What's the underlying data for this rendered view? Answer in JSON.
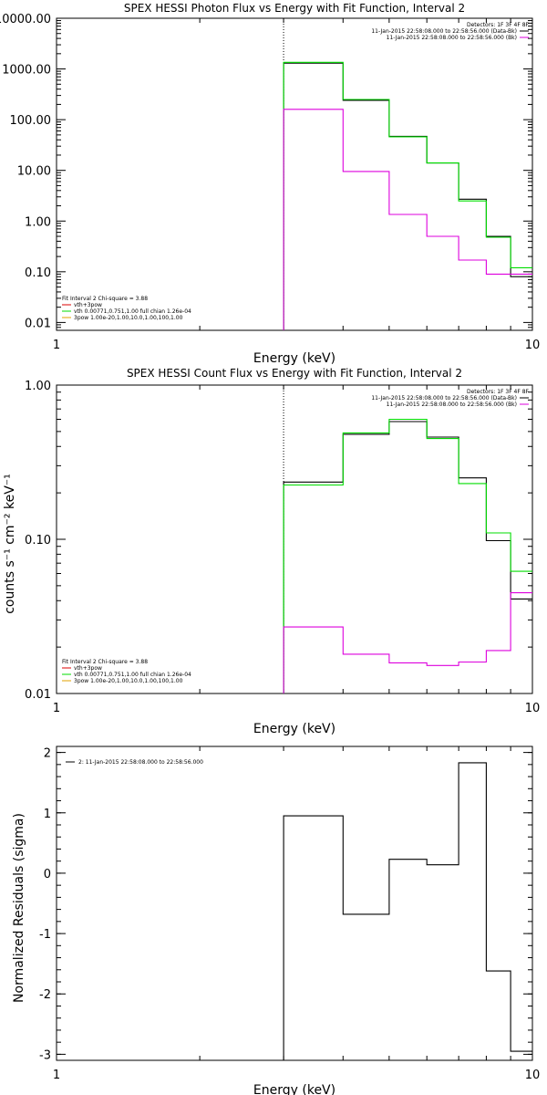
{
  "colors": {
    "black": "#000000",
    "green": "#00dd00",
    "magenta": "#dd00dd",
    "orange": "#e0a000",
    "red": "#dd0000"
  },
  "chart_data": [
    {
      "type": "line",
      "step": true,
      "title": "SPEX HESSI Photon Flux vs Energy with Fit Function, Interval 2",
      "xlabel": "Energy (keV)",
      "ylabel": "",
      "xscale": "log",
      "yscale": "log",
      "xlim": [
        1,
        10
      ],
      "ylim": [
        0.007,
        10000
      ],
      "x_ticks": [
        "1",
        "10"
      ],
      "y_ticks": [
        {
          "v": 0.01,
          "label": "0.01"
        },
        {
          "v": 0.1,
          "label": "0.10"
        },
        {
          "v": 1,
          "label": "1.00"
        },
        {
          "v": 10,
          "label": "10.00"
        },
        {
          "v": 100,
          "label": "100.00"
        },
        {
          "v": 1000,
          "label": "1000.00"
        },
        {
          "v": 10000,
          "label": "10000.00"
        }
      ],
      "vline_x": 3,
      "bin_edges": [
        3,
        4,
        5,
        6,
        7,
        8,
        9,
        10
      ],
      "series": [
        {
          "name": "11-Jan-2015 22:58:08.000 to 22:58:56.000 (Data-Bk)",
          "color": "#000000",
          "values": [
            1300,
            240,
            47,
            14,
            2.7,
            0.5,
            0.08
          ]
        },
        {
          "name": "vth 0.00771,0.751,1.00  full chian 1.26e-04",
          "color": "#00dd00",
          "values": [
            1350,
            250,
            46,
            14,
            2.5,
            0.48,
            0.12
          ]
        },
        {
          "name": "11-Jan-2015 22:58:08.000 to 22:58:56.000 (Bk)",
          "color": "#dd00dd",
          "values": [
            160,
            9.5,
            1.35,
            0.5,
            0.17,
            0.09,
            0.09
          ]
        }
      ],
      "legend_top": {
        "header": "Detectors: 1F 3F 4F 8F",
        "items": [
          {
            "text": "11-Jan-2015 22:58:08.000 to 22:58:56.000 (Data-Bk)",
            "color": "#000000"
          },
          {
            "text": "11-Jan-2015 22:58:08.000 to 22:58:56.000 (Bk)",
            "color": "#dd00dd"
          }
        ]
      },
      "legend_bottom": {
        "header": "Fit Interval  2   Chi-square = 3.88",
        "items": [
          {
            "text": "vth+3pow",
            "color": "#dd0000"
          },
          {
            "text": "vth 0.00771,0.751,1.00  full chian 1.26e-04",
            "color": "#00dd00"
          },
          {
            "text": "3pow 1.00e-20,1.00,10.0,1.00,100,1.00",
            "color": "#e0a000"
          }
        ]
      }
    },
    {
      "type": "line",
      "step": true,
      "title": "SPEX HESSI Count Flux vs Energy with Fit Function, Interval 2",
      "xlabel": "Energy (keV)",
      "ylabel": "counts s⁻¹ cm⁻² keV⁻¹",
      "xscale": "log",
      "yscale": "log",
      "xlim": [
        1,
        10
      ],
      "ylim": [
        0.01,
        1
      ],
      "x_ticks": [
        "1",
        "10"
      ],
      "y_ticks": [
        {
          "v": 0.01,
          "label": "0.01"
        },
        {
          "v": 0.1,
          "label": "0.10"
        },
        {
          "v": 1,
          "label": "1.00"
        }
      ],
      "vline_x": 3,
      "bin_edges": [
        3,
        4,
        5,
        6,
        7,
        8,
        9,
        10
      ],
      "series": [
        {
          "name": "11-Jan-2015 22:58:08.000 to 22:58:56.000 (Data-Bk)",
          "color": "#000000",
          "values": [
            0.235,
            0.48,
            0.58,
            0.46,
            0.25,
            0.098,
            0.041
          ]
        },
        {
          "name": "vth 0.00771,0.751,1.00  full chian 1.26e-04",
          "color": "#00dd00",
          "values": [
            0.225,
            0.49,
            0.6,
            0.45,
            0.23,
            0.11,
            0.062
          ]
        },
        {
          "name": "11-Jan-2015 22:58:08.000 to 22:58:56.000 (Bk)",
          "color": "#dd00dd",
          "values": [
            0.027,
            0.018,
            0.0158,
            0.0152,
            0.016,
            0.019,
            0.045
          ]
        }
      ],
      "legend_top": {
        "header": "Detectors: 1F 3F 4F 8F",
        "items": [
          {
            "text": "11-Jan-2015 22:58:08.000 to 22:58:56.000 (Data-Bk)",
            "color": "#000000"
          },
          {
            "text": "11-Jan-2015 22:58:08.000 to 22:58:56.000 (Bk)",
            "color": "#dd00dd"
          }
        ]
      },
      "legend_bottom": {
        "header": "Fit Interval  2   Chi-square = 3.88",
        "items": [
          {
            "text": "vth+3pow",
            "color": "#dd0000"
          },
          {
            "text": "vth 0.00771,0.751,1.00  full chian 1.26e-04",
            "color": "#00dd00"
          },
          {
            "text": "3pow 1.00e-20,1.00,10.0,1.00,100,1.00",
            "color": "#e0a000"
          }
        ]
      }
    },
    {
      "type": "line",
      "step": true,
      "title": "",
      "xlabel": "Energy (keV)",
      "ylabel": "Normalized Residuals (sigma)",
      "xscale": "log",
      "yscale": "linear",
      "xlim": [
        1,
        10
      ],
      "ylim": [
        -3.1,
        2.1
      ],
      "x_ticks": [
        "1",
        "10"
      ],
      "y_ticks": [
        {
          "v": -3,
          "label": "-3"
        },
        {
          "v": -2,
          "label": "-2"
        },
        {
          "v": -1,
          "label": "-1"
        },
        {
          "v": 0,
          "label": "0"
        },
        {
          "v": 1,
          "label": "1"
        },
        {
          "v": 2,
          "label": "2"
        }
      ],
      "bin_edges": [
        3,
        4,
        5,
        6,
        7,
        8,
        9,
        10
      ],
      "series": [
        {
          "name": "2: 11-Jan-2015 22:58:08.000 to 22:58:56.000",
          "color": "#000000",
          "values": [
            0.95,
            -0.68,
            0.23,
            0.14,
            1.83,
            -1.62,
            -2.95
          ]
        }
      ],
      "legend_top": {
        "header": "",
        "items": [
          {
            "text": "2: 11-Jan-2015 22:58:08.000 to 22:58:56.000",
            "color": "#000000"
          }
        ]
      }
    }
  ]
}
